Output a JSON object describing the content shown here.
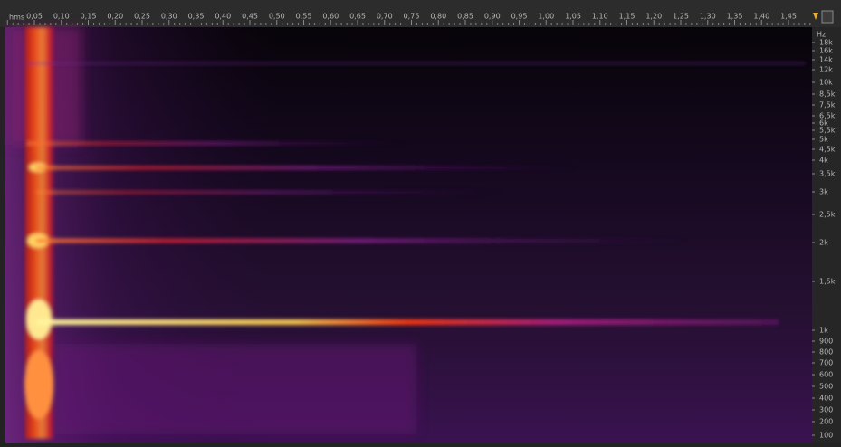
{
  "ruler": {
    "unit": "hms",
    "labels": [
      "0,05",
      "0,10",
      "0,15",
      "0,20",
      "0,25",
      "0,30",
      "0,35",
      "0,40",
      "0,45",
      "0,50",
      "0,55",
      "0,60",
      "0,65",
      "0,70",
      "0,75",
      "0,80",
      "0,85",
      "0,90",
      "0,95",
      "1,00",
      "1,05",
      "1,10",
      "1,15",
      "1,20",
      "1,25",
      "1,30",
      "1,35",
      "1,40",
      "1,45"
    ]
  },
  "frequency_axis": {
    "unit": "Hz",
    "labels": [
      "18k",
      "16k",
      "14k",
      "12k",
      "10k",
      "8,5k",
      "7,5k",
      "6,5k",
      "6k",
      "5,5k",
      "5k",
      "4,5k",
      "4k",
      "3,5k",
      "3k",
      "2,5k",
      "2k",
      "1,5k",
      "1k",
      "900",
      "800",
      "700",
      "600",
      "500",
      "400",
      "300",
      "200",
      "100"
    ]
  }
}
